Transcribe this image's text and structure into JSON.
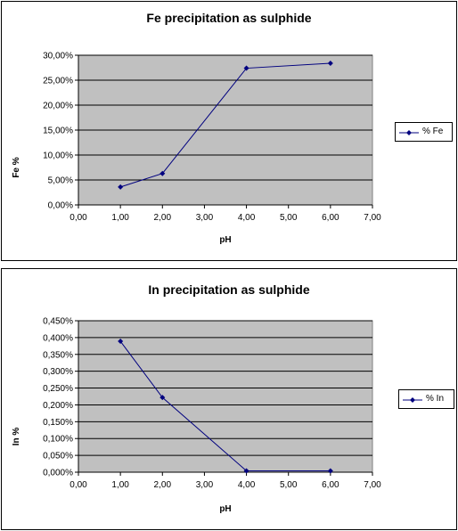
{
  "chart_data": [
    {
      "type": "line",
      "title": "Fe precipitation as sulphide",
      "xlabel": "pH",
      "ylabel": "Fe %",
      "x_ticks": [
        "0,00",
        "1,00",
        "2,00",
        "3,00",
        "4,00",
        "5,00",
        "6,00",
        "7,00"
      ],
      "y_ticks": [
        "0,00%",
        "5,00%",
        "10,00%",
        "15,00%",
        "20,00%",
        "25,00%",
        "30,00%"
      ],
      "xlim": [
        0,
        7
      ],
      "ylim": [
        0,
        30
      ],
      "grid": true,
      "legend_position": "right",
      "series": [
        {
          "name": "% Fe",
          "color": "#00007F",
          "x": [
            1,
            2,
            4,
            6
          ],
          "values": [
            3.6,
            6.3,
            27.4,
            28.4
          ]
        }
      ]
    },
    {
      "type": "line",
      "title": "In precipitation as sulphide",
      "xlabel": "pH",
      "ylabel": "In %",
      "x_ticks": [
        "0,00",
        "1,00",
        "2,00",
        "3,00",
        "4,00",
        "5,00",
        "6,00",
        "7,00"
      ],
      "y_ticks": [
        "0,000%",
        "0,050%",
        "0,100%",
        "0,150%",
        "0,200%",
        "0,250%",
        "0,300%",
        "0,350%",
        "0,400%",
        "0,450%"
      ],
      "xlim": [
        0,
        7
      ],
      "ylim": [
        0,
        0.45
      ],
      "grid": true,
      "legend_position": "right",
      "series": [
        {
          "name": "% In",
          "color": "#00007F",
          "x": [
            1,
            2,
            4,
            6
          ],
          "values": [
            0.389,
            0.222,
            0.004,
            0.004
          ]
        }
      ]
    }
  ],
  "colors": {
    "plot_background": "#C0C0C0",
    "gridline": "#000000",
    "series": "#00007F"
  }
}
